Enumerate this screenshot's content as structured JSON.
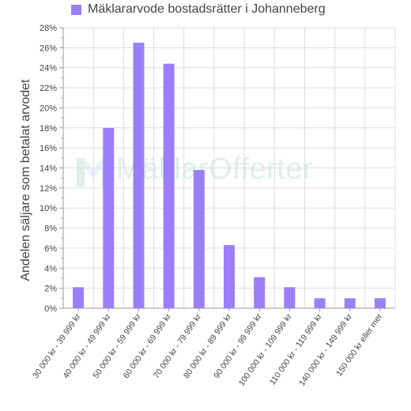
{
  "chart_data": {
    "type": "bar",
    "title": "",
    "xlabel": "",
    "ylabel": "Andelen säljare som betalat arvodet",
    "categories": [
      "30 000 kr - 39 999 kr",
      "40 000 kr - 49 999 kr",
      "50 000 kr - 59 999 kr",
      "60 000 kr - 69 999 kr",
      "70 000 kr - 79 999 kr",
      "80 000 kr - 89 999 kr",
      "90 000 kr - 99 999 kr",
      "100 000 kr - 109 999 kr",
      "110 000 kr - 119 999 kr",
      "140 000 kr - 149 999 kr",
      "150 000 kr eller mer"
    ],
    "series": [
      {
        "name": "Mäklararvode bostadsrätter i Johanneberg",
        "values": [
          2.1,
          18.0,
          26.5,
          24.4,
          13.8,
          6.3,
          3.1,
          2.1,
          1.0,
          1.0,
          1.0
        ]
      }
    ],
    "ylim": [
      0,
      28
    ],
    "yticks": [
      0,
      2,
      4,
      6,
      8,
      10,
      12,
      14,
      16,
      18,
      20,
      22,
      24,
      26,
      28
    ],
    "ytick_suffix": "%",
    "grid": true,
    "legend": "top",
    "bar_color": "#9b7ff8"
  },
  "watermark": {
    "text": "MäklarOfferter"
  }
}
